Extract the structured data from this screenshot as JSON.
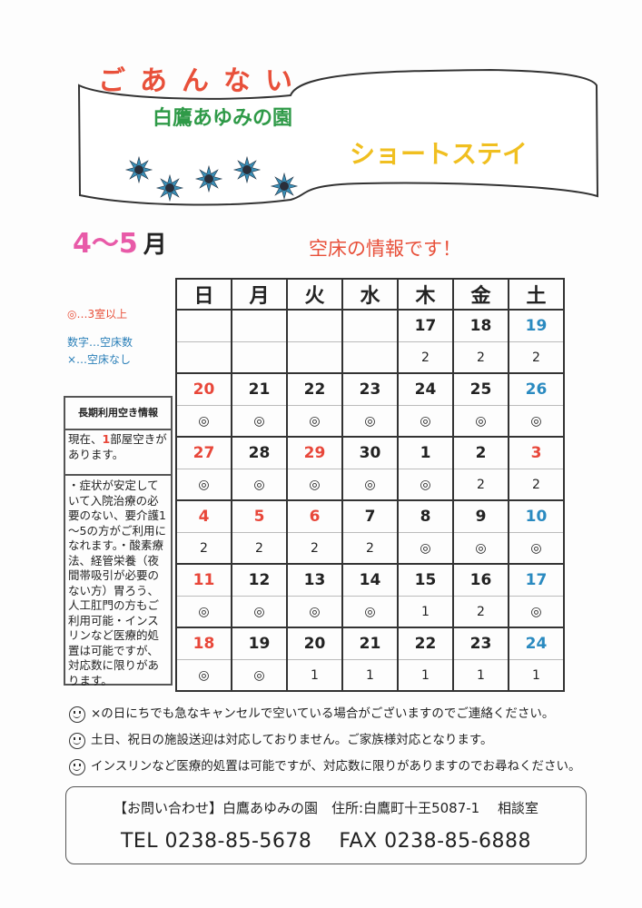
{
  "header": {
    "annai": "ごあんない",
    "org": "白鷹あゆみの園",
    "service": "ショートステイ",
    "months": "4～5",
    "month_suffix": "月",
    "info": "空床の情報です！"
  },
  "colors": {
    "title": "#e8503a",
    "org": "#2f9a48",
    "service": "#f0bf20",
    "months": "#e85aa8",
    "holiday": "#e8473a",
    "saturday": "#2a8ac0",
    "star": "#3a8fb7"
  },
  "legend": {
    "double_circle": "◎…3室以上",
    "number": "数字…空床数",
    "cross": "×…空床なし"
  },
  "calendar": {
    "weekdays": [
      "日",
      "月",
      "火",
      "水",
      "木",
      "金",
      "土"
    ],
    "weeks": [
      {
        "days": [
          "",
          "",
          "",
          "",
          "17",
          "18",
          "19"
        ],
        "types": [
          "",
          "",
          "",
          "",
          "",
          "",
          "sat"
        ],
        "values": [
          "",
          "",
          "",
          "",
          "2",
          "2",
          "2"
        ]
      },
      {
        "days": [
          "20",
          "21",
          "22",
          "23",
          "24",
          "25",
          "26"
        ],
        "types": [
          "sun",
          "",
          "",
          "",
          "",
          "",
          "sat"
        ],
        "values": [
          "◎",
          "◎",
          "◎",
          "◎",
          "◎",
          "◎",
          "◎"
        ]
      },
      {
        "days": [
          "27",
          "28",
          "29",
          "30",
          "1",
          "2",
          "3"
        ],
        "types": [
          "sun",
          "",
          "hol",
          "",
          "",
          "",
          "hol"
        ],
        "values": [
          "◎",
          "◎",
          "◎",
          "◎",
          "◎",
          "2",
          "2"
        ]
      },
      {
        "days": [
          "4",
          "5",
          "6",
          "7",
          "8",
          "9",
          "10"
        ],
        "types": [
          "sun",
          "hol",
          "hol",
          "",
          "",
          "",
          "sat"
        ],
        "values": [
          "2",
          "2",
          "2",
          "2",
          "◎",
          "◎",
          "◎"
        ]
      },
      {
        "days": [
          "11",
          "12",
          "13",
          "14",
          "15",
          "16",
          "17"
        ],
        "types": [
          "sun",
          "",
          "",
          "",
          "",
          "",
          "sat"
        ],
        "values": [
          "◎",
          "◎",
          "◎",
          "◎",
          "1",
          "2",
          "◎"
        ]
      },
      {
        "days": [
          "18",
          "19",
          "20",
          "21",
          "22",
          "23",
          "24"
        ],
        "types": [
          "sun",
          "",
          "",
          "",
          "",
          "",
          "sat"
        ],
        "values": [
          "◎",
          "◎",
          "1",
          "1",
          "1",
          "1",
          "1"
        ]
      }
    ]
  },
  "long_term": {
    "title": "長期利用空き情報",
    "current_pre": "現在、",
    "current_count": "1",
    "current_post": "部屋空きがあります。",
    "body": "・症状が安定していて入院治療の必要のない、要介護1～5の方がご利用になれます。・酸素療法、経管栄養（夜間帯吸引が必要のない方）胃ろう、人工肛門の方もご利用可能・インスリンなど医療的処置は可能ですが、対応数に限りがあります。"
  },
  "notes": [
    "×の日にちでも急なキャンセルで空いている場合がございますのでご連絡ください。",
    "土日、祝日の施設送迎は対応しておりません。ご家族様対応となります。",
    "インスリンなど医療的処置は可能ですが、対応数に限りがありますのでお尋ねください。"
  ],
  "contact": {
    "line1": "【お問い合わせ】白鷹あゆみの園　住所:白鷹町十王5087-1　 相談室",
    "tel": "TEL  0238-85-5678",
    "fax": "FAX  0238-85-6888"
  }
}
